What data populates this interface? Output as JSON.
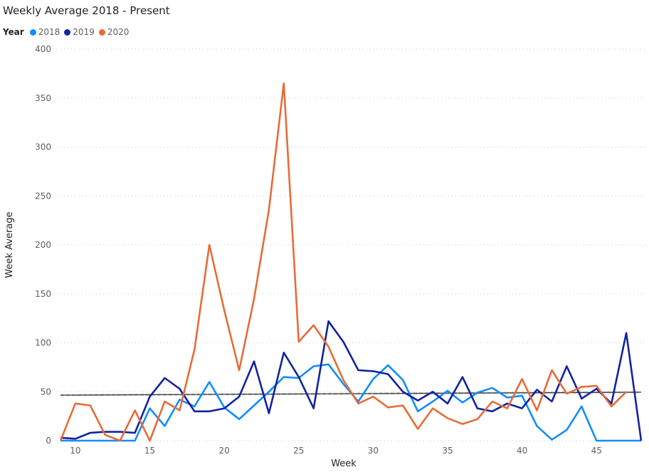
{
  "chart_data": {
    "type": "line",
    "title": "Weekly Average 2018 - Present",
    "xlabel": "Week",
    "ylabel": "Week Average",
    "legend_title": "Year",
    "legend_position": "top-left",
    "xlim": [
      9,
      48
    ],
    "ylim": [
      0,
      400
    ],
    "xticks": [
      10,
      15,
      20,
      25,
      30,
      35,
      40,
      45
    ],
    "yticks": [
      0,
      50,
      100,
      150,
      200,
      250,
      300,
      350,
      400
    ],
    "grid": "horizontal dotted",
    "x": [
      9,
      10,
      11,
      12,
      13,
      14,
      15,
      16,
      17,
      18,
      19,
      20,
      21,
      22,
      23,
      24,
      25,
      26,
      27,
      28,
      29,
      30,
      31,
      32,
      33,
      34,
      35,
      36,
      37,
      38,
      39,
      40,
      41,
      42,
      43,
      44,
      45,
      46,
      47,
      48
    ],
    "series": [
      {
        "name": "2018",
        "color": "#118DFF",
        "values": [
          0,
          0,
          0,
          0,
          0,
          0,
          33,
          15,
          42,
          35,
          60,
          34,
          22,
          36,
          50,
          65,
          64,
          76,
          78,
          58,
          40,
          63,
          77,
          62,
          30,
          40,
          51,
          39,
          49,
          54,
          44,
          46,
          15,
          1,
          11,
          35,
          0,
          0,
          0,
          0
        ]
      },
      {
        "name": "2019",
        "color": "#12239E",
        "values": [
          3,
          2,
          8,
          9,
          9,
          8,
          45,
          64,
          53,
          30,
          30,
          33,
          45,
          81,
          28,
          90,
          65,
          33,
          122,
          101,
          72,
          71,
          68,
          50,
          41,
          50,
          38,
          65,
          33,
          30,
          38,
          33,
          52,
          40,
          76,
          43,
          53,
          38,
          110,
          0
        ]
      },
      {
        "name": "2020",
        "color": "#E66C37",
        "values": [
          0,
          38,
          36,
          6,
          0,
          31,
          0,
          40,
          31,
          93,
          200,
          133,
          72,
          145,
          236,
          365,
          101,
          118,
          96,
          62,
          38,
          45,
          34,
          36,
          12,
          33,
          23,
          17,
          22,
          40,
          33,
          63,
          31,
          72,
          48,
          55,
          56,
          35,
          50,
          null
        ]
      }
    ],
    "trend_line": {
      "color": "#252423",
      "style": "dashed",
      "start": [
        9,
        46.5
      ],
      "end": [
        48,
        49.5
      ]
    }
  }
}
